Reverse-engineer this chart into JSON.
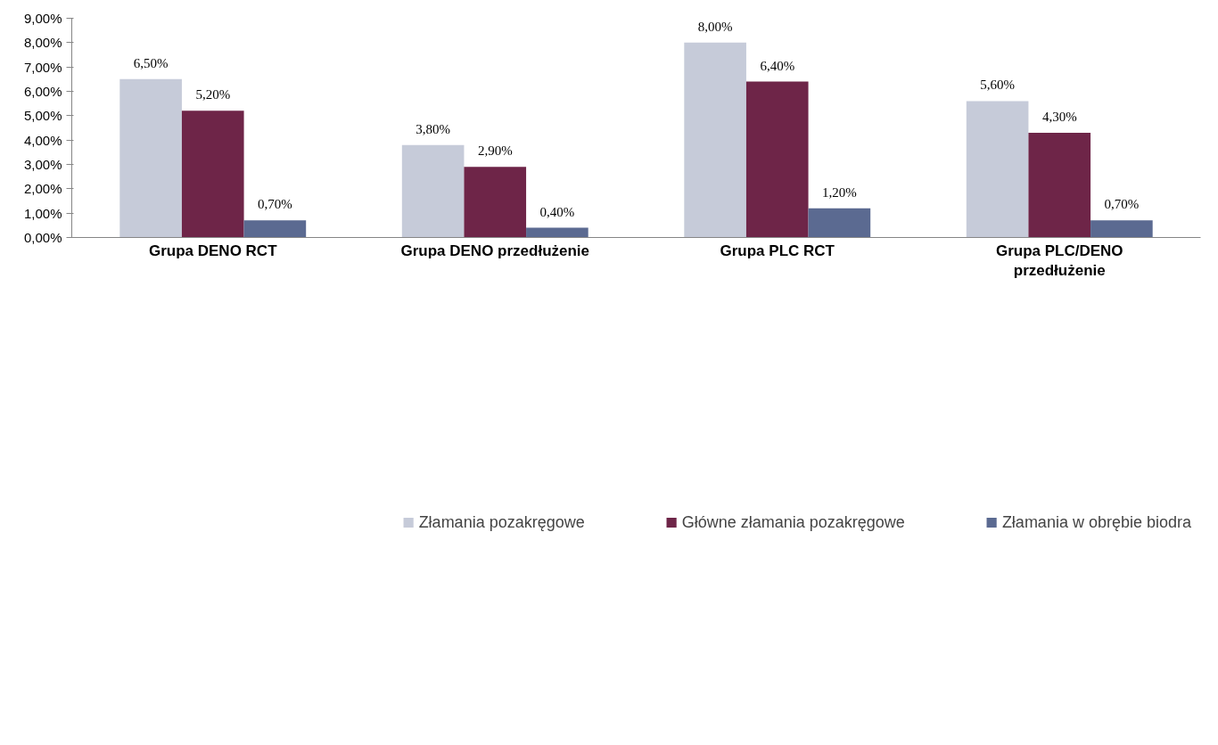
{
  "chart_data": {
    "type": "bar",
    "categories": [
      "Grupa DENO RCT",
      "Grupa DENO przedłużenie",
      "Grupa PLC RCT",
      "Grupa PLC/DENO przedłużenie"
    ],
    "series": [
      {
        "name": "Złamania pozakręgowe",
        "color": "#c6cbd9",
        "values": [
          6.5,
          3.8,
          8.0,
          5.6
        ],
        "value_labels": [
          "6,50%",
          "3,80%",
          "8,00%",
          "5,60%"
        ]
      },
      {
        "name": "Główne złamania pozakręgowe",
        "color": "#6e2548",
        "values": [
          5.2,
          2.9,
          6.4,
          4.3
        ],
        "value_labels": [
          "5,20%",
          "2,90%",
          "6,40%",
          "4,30%"
        ]
      },
      {
        "name": "Złamania w obrębie biodra",
        "color": "#5b6a91",
        "values": [
          0.7,
          0.4,
          1.2,
          0.7
        ],
        "value_labels": [
          "0,70%",
          "0,40%",
          "1,20%",
          "0,70%"
        ]
      }
    ],
    "ylim": [
      0,
      9
    ],
    "yticks": [
      {
        "value": 0,
        "label": "0,00%"
      },
      {
        "value": 1,
        "label": "1,00%"
      },
      {
        "value": 2,
        "label": "2,00%"
      },
      {
        "value": 3,
        "label": "3,00%"
      },
      {
        "value": 4,
        "label": "4,00%"
      },
      {
        "value": 5,
        "label": "5,00%"
      },
      {
        "value": 6,
        "label": "6,00%"
      },
      {
        "value": 7,
        "label": "7,00%"
      },
      {
        "value": 8,
        "label": "8,00%"
      },
      {
        "value": 9,
        "label": "9,00%"
      }
    ],
    "grid": false,
    "legend": "bottom"
  }
}
